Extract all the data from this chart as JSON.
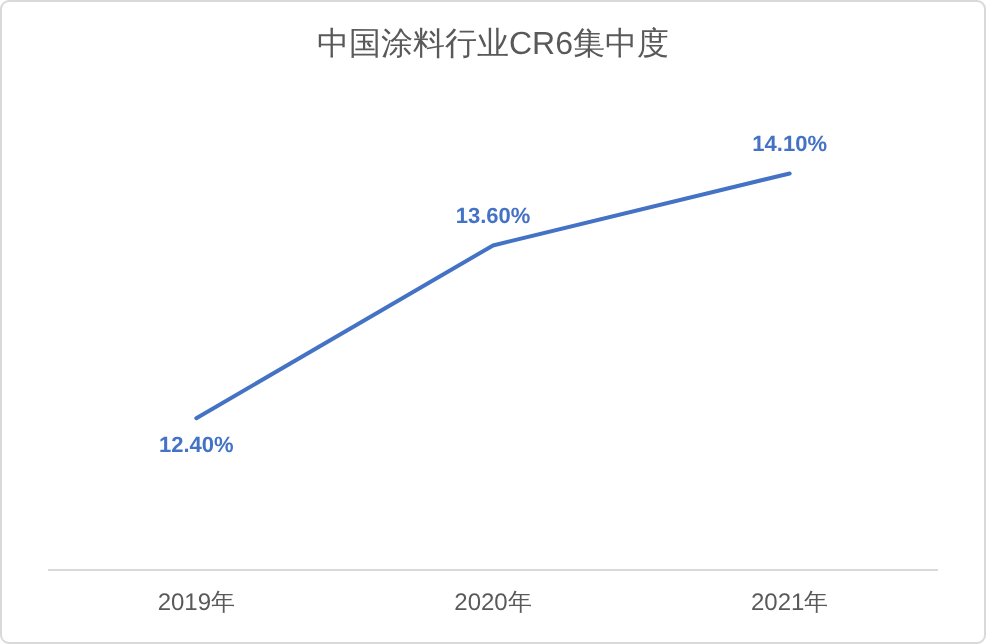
{
  "chart_data": {
    "type": "line",
    "title": "中国涂料行业CR6集中度",
    "categories": [
      "2019年",
      "2020年",
      "2021年"
    ],
    "series": [
      {
        "color": "#4472c4",
        "values": [
          12.4,
          13.6,
          14.1
        ],
        "value_labels": [
          "12.40%",
          "13.60%",
          "14.10%"
        ]
      }
    ],
    "tick_labels": "x",
    "marker": "none",
    "line_style": "solid"
  }
}
